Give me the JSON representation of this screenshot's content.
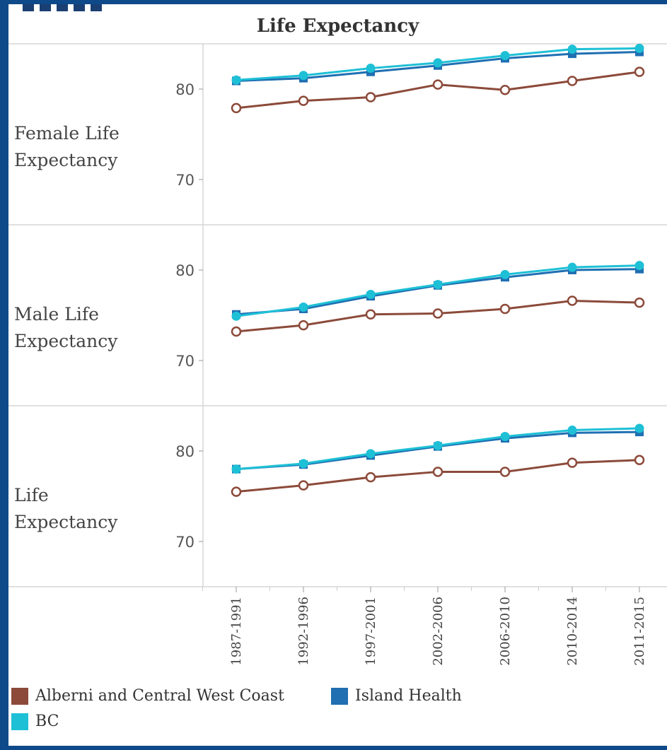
{
  "chart_data": {
    "type": "line",
    "title": "Life Expectancy",
    "x": [
      "1987-1991",
      "1992-1996",
      "1997-2001",
      "2002-2006",
      "2006-2010",
      "2010-2014",
      "2011-2015"
    ],
    "ylim": [
      65,
      85
    ],
    "yticks": [
      70,
      80
    ],
    "grid": true,
    "legend_position": "bottom",
    "panels": [
      {
        "label": "Female Life Expectancy",
        "series": [
          {
            "name": "Alberni and Central West Coast",
            "values": [
              77.9,
              78.7,
              79.1,
              80.5,
              79.9,
              80.9,
              81.9
            ]
          },
          {
            "name": "Island Health",
            "values": [
              80.9,
              81.2,
              81.9,
              82.6,
              83.4,
              83.9,
              84.1
            ]
          },
          {
            "name": "BC",
            "values": [
              81.0,
              81.5,
              82.3,
              82.9,
              83.7,
              84.4,
              84.5
            ]
          }
        ]
      },
      {
        "label": "Male Life Expectancy",
        "series": [
          {
            "name": "Alberni and Central West Coast",
            "values": [
              73.2,
              73.9,
              75.1,
              75.2,
              75.7,
              76.6,
              76.4
            ]
          },
          {
            "name": "Island Health",
            "values": [
              75.1,
              75.7,
              77.1,
              78.3,
              79.2,
              80.0,
              80.1
            ]
          },
          {
            "name": "BC",
            "values": [
              74.9,
              75.9,
              77.3,
              78.4,
              79.5,
              80.3,
              80.5
            ]
          }
        ]
      },
      {
        "label": "Life Expectancy",
        "series": [
          {
            "name": "Alberni and Central West Coast",
            "values": [
              75.5,
              76.2,
              77.1,
              77.7,
              77.7,
              78.7,
              79.0
            ]
          },
          {
            "name": "Island Health",
            "values": [
              78.0,
              78.5,
              79.5,
              80.5,
              81.4,
              82.0,
              82.1
            ]
          },
          {
            "name": "BC",
            "values": [
              78.0,
              78.6,
              79.7,
              80.6,
              81.6,
              82.3,
              82.5
            ]
          }
        ]
      }
    ],
    "series_styles": [
      {
        "name": "Alberni and Central West Coast",
        "color": "#8c4a3a",
        "marker": "circle-open"
      },
      {
        "name": "Island Health",
        "color": "#1f6fb2",
        "marker": "square"
      },
      {
        "name": "BC",
        "color": "#1ec0d6",
        "marker": "circle"
      }
    ]
  },
  "legend": {
    "items": [
      {
        "label": "Alberni and Central West Coast",
        "color": "#8c4a3a"
      },
      {
        "label": "Island Health",
        "color": "#1f6fb2"
      },
      {
        "label": "BC",
        "color": "#1ec0d6"
      }
    ]
  }
}
